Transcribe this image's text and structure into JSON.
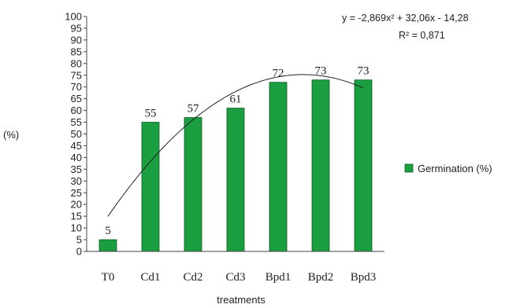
{
  "chart_data": {
    "type": "bar",
    "categories": [
      "T0",
      "Cd1",
      "Cd2",
      "Cd3",
      "Bpd1",
      "Bpd2",
      "Bpd3"
    ],
    "series": [
      {
        "name": "Germination (%)",
        "values": [
          5,
          55,
          57,
          61,
          72,
          73,
          73
        ],
        "color": "#1a9e3f"
      }
    ],
    "data_labels": [
      "5",
      "55",
      "57",
      "61",
      "72",
      "73",
      "73"
    ],
    "xlabel": "treatments",
    "ylabel": "(%)",
    "ylim": [
      0,
      100
    ],
    "ytick_step": 5,
    "grid": false,
    "legend": {
      "position": "right",
      "label": "Germination (%)"
    },
    "trendline": {
      "type": "polynomial",
      "a": -2.869,
      "b": 32.06,
      "c": -14.28,
      "equation": "y = -2,869x² + 32,06x - 14,28",
      "r2_label": "R² = 0,871"
    },
    "colors": {
      "bar": "#1a9e3f",
      "bar_edge": "#0d5a22",
      "axis": "#444444",
      "trend": "#222222"
    }
  }
}
